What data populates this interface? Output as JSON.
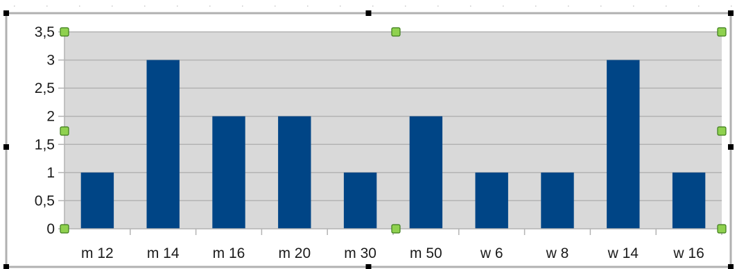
{
  "colors": {
    "plot_background": "#d9d9d9",
    "bar": "#004586",
    "gridline": "#b3b3b3",
    "selection_handle_fill": "#8fd14f",
    "selection_handle_border": "#3c7a1a",
    "frame_border": "#b0b0b0"
  },
  "chart_data": {
    "type": "bar",
    "categories": [
      "m 12",
      "m 14",
      "m 16",
      "m 20",
      "m 30",
      "m 50",
      "w 6",
      "w 8",
      "w 14",
      "w 16"
    ],
    "values": [
      1,
      3,
      2,
      2,
      1,
      2,
      1,
      1,
      3,
      1
    ],
    "ylim": [
      0,
      3.5
    ],
    "y_ticks": [
      {
        "value": 0,
        "label": "0"
      },
      {
        "value": 0.5,
        "label": "0,5"
      },
      {
        "value": 1,
        "label": "1"
      },
      {
        "value": 1.5,
        "label": "1,5"
      },
      {
        "value": 2,
        "label": "2"
      },
      {
        "value": 2.5,
        "label": "2,5"
      },
      {
        "value": 3,
        "label": "3"
      },
      {
        "value": 3.5,
        "label": "3,5"
      }
    ],
    "grid": true,
    "legend": false
  }
}
